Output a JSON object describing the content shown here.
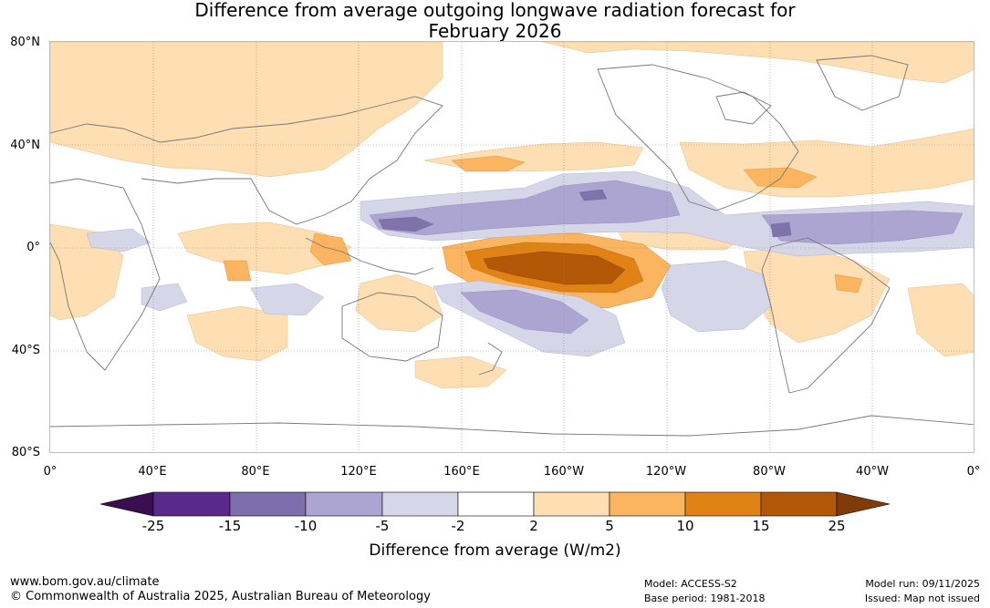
{
  "title": {
    "line1": "Difference from average outgoing longwave radiation forecast for",
    "line2": "February 2026"
  },
  "axes": {
    "lat_labels": [
      "80°N",
      "40°N",
      "0°",
      "40°S",
      "80°S"
    ],
    "lon_labels": [
      "0°",
      "40°E",
      "80°E",
      "120°E",
      "160°E",
      "160°W",
      "120°W",
      "80°W",
      "40°W",
      "0°"
    ]
  },
  "colorbar": {
    "label": "Difference from average (W/m2)",
    "ticks": [
      "-25",
      "-15",
      "-10",
      "-5",
      "-2",
      "2",
      "5",
      "10",
      "15",
      "25"
    ],
    "colors": [
      "#3b0f4f",
      "#5a2a8a",
      "#7f6ead",
      "#ada5d1",
      "#d6d6e9",
      "#ffffff",
      "#fddfb3",
      "#fbb460",
      "#e08214",
      "#b35806",
      "#7f3b08"
    ]
  },
  "map_colors": {
    "land_outline": "#777777",
    "neg_light": "#d6d6e9",
    "neg_mid": "#ada5d1",
    "neg_dark": "#8073ac",
    "pos_light": "#fddfb3",
    "pos_mid": "#fbb460",
    "pos_strong": "#e08214",
    "pos_max": "#b35806",
    "grid": "#888888"
  },
  "footer": {
    "website": "www.bom.gov.au/climate",
    "copyright": "© Commonwealth of Australia 2025, Australian Bureau of Meteorology",
    "model": "Model: ACCESS-S2",
    "base_period": "Base period: 1981-2018",
    "model_run": "Model run: 09/11/2025",
    "issued": "Issued: Map not issued"
  }
}
